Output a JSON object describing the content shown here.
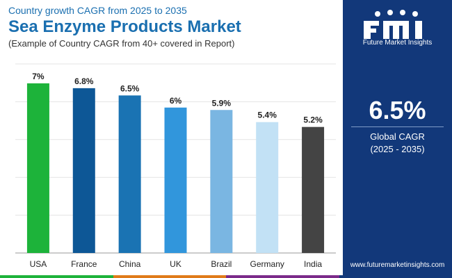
{
  "header": {
    "subtitle": "Country growth CAGR from 2025 to 2035",
    "title": "Sea Enzyme Products Market",
    "note": "(Example of Country CAGR from 40+ covered in Report)"
  },
  "chart_data": {
    "type": "bar",
    "categories": [
      "USA",
      "France",
      "China",
      "UK",
      "Brazil",
      "Germany",
      "India"
    ],
    "values": [
      7,
      6.8,
      6.5,
      6,
      5.9,
      5.4,
      5.2
    ],
    "labels": [
      "7%",
      "6.8%",
      "6.5%",
      "6%",
      "5.9%",
      "5.4%",
      "5.2%"
    ],
    "colors": [
      "#1db33a",
      "#0d5796",
      "#1a73b3",
      "#3196dc",
      "#7ab6e2",
      "#c2e1f5",
      "#444444"
    ],
    "ylim": [
      0,
      7.8
    ],
    "gridlines": 5,
    "title": "",
    "xlabel": "",
    "ylabel": ""
  },
  "panel": {
    "logo_text": "Future Market Insights",
    "cagr_value": "6.5%",
    "cagr_label": "Global CAGR",
    "cagr_period": "(2025 - 2035)",
    "website": "www.futuremarketinsights.com"
  },
  "colors": {
    "brand": "#1a6fb0",
    "panel": "#12387a",
    "footer": [
      "#1db33a",
      "#e07b1a",
      "#7b2a8a",
      "#12387a"
    ]
  }
}
